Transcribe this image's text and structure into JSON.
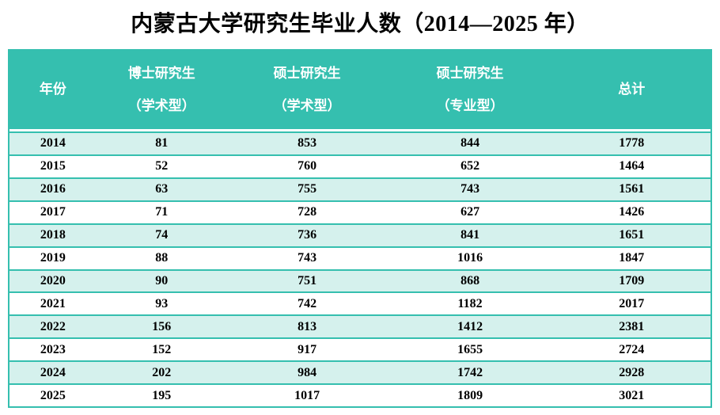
{
  "title": "内蒙古大学研究生毕业人数（2014—2025 年）",
  "colors": {
    "header_bg": "#35BFAF",
    "row_alt_bg": "#D5F1ED",
    "row_bg": "#FFFFFF",
    "border": "#35BFAF",
    "header_text": "#FFFFFF",
    "body_text": "#000000"
  },
  "table": {
    "columns": [
      {
        "line1": "年份",
        "line2": ""
      },
      {
        "line1": "博士研究生",
        "line2": "（学术型）"
      },
      {
        "line1": "硕士研究生",
        "line2": "（学术型）"
      },
      {
        "line1": "硕士研究生",
        "line2": "（专业型）"
      },
      {
        "line1": "总计",
        "line2": ""
      }
    ],
    "rows": [
      [
        "2014",
        "81",
        "853",
        "844",
        "1778"
      ],
      [
        "2015",
        "52",
        "760",
        "652",
        "1464"
      ],
      [
        "2016",
        "63",
        "755",
        "743",
        "1561"
      ],
      [
        "2017",
        "71",
        "728",
        "627",
        "1426"
      ],
      [
        "2018",
        "74",
        "736",
        "841",
        "1651"
      ],
      [
        "2019",
        "88",
        "743",
        "1016",
        "1847"
      ],
      [
        "2020",
        "90",
        "751",
        "868",
        "1709"
      ],
      [
        "2021",
        "93",
        "742",
        "1182",
        "2017"
      ],
      [
        "2022",
        "156",
        "813",
        "1412",
        "2381"
      ],
      [
        "2023",
        "152",
        "917",
        "1655",
        "2724"
      ],
      [
        "2024",
        "202",
        "984",
        "1742",
        "2928"
      ],
      [
        "2025",
        "195",
        "1017",
        "1809",
        "3021"
      ]
    ]
  },
  "chart_data": {
    "type": "table",
    "title": "内蒙古大学研究生毕业人数（2014—2025 年）",
    "columns": [
      "年份",
      "博士研究生（学术型）",
      "硕士研究生（学术型）",
      "硕士研究生（专业型）",
      "总计"
    ],
    "rows": [
      [
        2014,
        81,
        853,
        844,
        1778
      ],
      [
        2015,
        52,
        760,
        652,
        1464
      ],
      [
        2016,
        63,
        755,
        743,
        1561
      ],
      [
        2017,
        71,
        728,
        627,
        1426
      ],
      [
        2018,
        74,
        736,
        841,
        1651
      ],
      [
        2019,
        88,
        743,
        1016,
        1847
      ],
      [
        2020,
        90,
        751,
        868,
        1709
      ],
      [
        2021,
        93,
        742,
        1182,
        2017
      ],
      [
        2022,
        156,
        813,
        1412,
        2381
      ],
      [
        2023,
        152,
        917,
        1655,
        2724
      ],
      [
        2024,
        202,
        984,
        1742,
        2928
      ],
      [
        2025,
        195,
        1017,
        1809,
        3021
      ]
    ]
  }
}
